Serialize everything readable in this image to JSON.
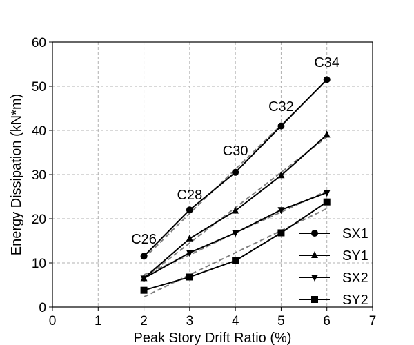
{
  "chart_data": {
    "type": "line",
    "title": "",
    "xlabel": "Peak Story Drift Ratio (%)",
    "ylabel": "Energy Dissipation (kN*m)",
    "xlim": [
      0,
      7
    ],
    "ylim": [
      0,
      60
    ],
    "xticks": [
      0,
      1,
      2,
      3,
      4,
      5,
      6,
      7
    ],
    "yticks": [
      0,
      10,
      20,
      30,
      40,
      50,
      60
    ],
    "grid": true,
    "legend_position": "lower-right",
    "x": [
      2,
      3,
      4,
      5,
      6
    ],
    "series": [
      {
        "name": "SX1",
        "marker": "circle",
        "values": [
          11.5,
          22.0,
          30.5,
          41.0,
          51.5
        ],
        "fit": [
          11.0,
          21.2,
          31.2,
          41.2,
          51.4
        ]
      },
      {
        "name": "SY1",
        "marker": "triangle-up",
        "values": [
          6.5,
          15.5,
          21.8,
          29.8,
          39.0
        ],
        "fit": [
          6.5,
          14.5,
          22.5,
          30.5,
          38.5
        ]
      },
      {
        "name": "SX2",
        "marker": "triangle-down",
        "values": [
          6.5,
          12.3,
          16.8,
          22.0,
          25.9
        ],
        "fit": [
          7.3,
          11.8,
          16.8,
          21.5,
          26.3
        ]
      },
      {
        "name": "SY2",
        "marker": "square",
        "values": [
          3.8,
          6.8,
          10.5,
          16.8,
          23.8
        ],
        "fit": [
          2.3,
          7.3,
          12.3,
          17.3,
          22.3
        ]
      }
    ],
    "annotations": [
      {
        "text": "C26",
        "x": 2,
        "y": 15.5
      },
      {
        "text": "C28",
        "x": 3,
        "y": 25.5
      },
      {
        "text": "C30",
        "x": 4,
        "y": 35.5
      },
      {
        "text": "C32",
        "x": 5,
        "y": 45.5
      },
      {
        "text": "C34",
        "x": 6,
        "y": 55.5
      }
    ],
    "colors": {
      "series": "#000000",
      "fit": "#808080",
      "grid": "#b0b0b0"
    }
  }
}
